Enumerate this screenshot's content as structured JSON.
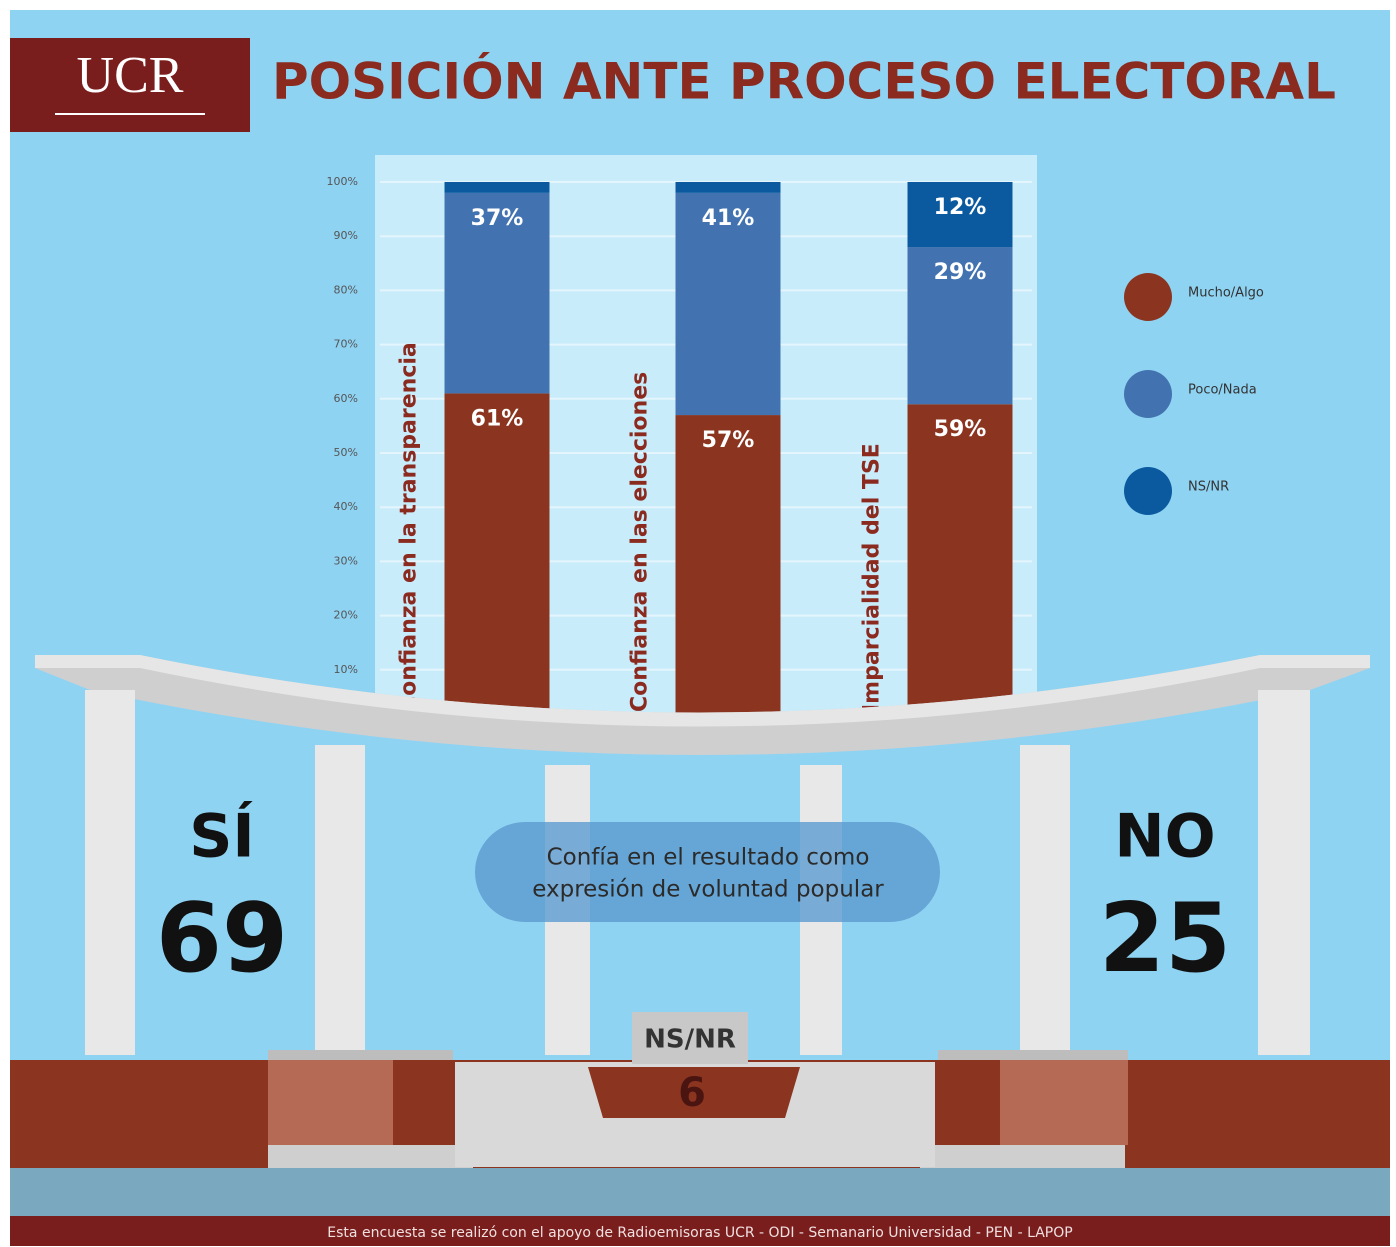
{
  "header": {
    "logo": "UCR",
    "title": "POSICIÓN ANTE PROCESO ELECTORAL"
  },
  "chart_data": {
    "type": "stacked_bar",
    "categories": [
      "Confianza en la transparencia",
      "Confianza en las elecciones",
      "Imparcialidad del TSE"
    ],
    "series": [
      {
        "name": "Mucho/Algo",
        "color": "#8b3520",
        "values": [
          61,
          57,
          59
        ],
        "value_labels": [
          "61%",
          "57%",
          "59%"
        ]
      },
      {
        "name": "Poco/Nada",
        "color": "#4273b0",
        "values": [
          37,
          41,
          29
        ],
        "value_labels": [
          "37%",
          "41%",
          "29%"
        ]
      },
      {
        "name": "NS/NR",
        "color": "#0b5aa0",
        "values": [
          2,
          2,
          12
        ],
        "value_labels": [
          null,
          null,
          "12%"
        ]
      }
    ],
    "ylim": [
      0,
      100
    ],
    "yticks": [
      {
        "value": 10,
        "label": "10%"
      },
      {
        "value": 20,
        "label": "20%"
      },
      {
        "value": 30,
        "label": "30%"
      },
      {
        "value": 40,
        "label": "40%"
      },
      {
        "value": 50,
        "label": "50%"
      },
      {
        "value": 60,
        "label": "60%"
      },
      {
        "value": 70,
        "label": "70%"
      },
      {
        "value": 80,
        "label": "80%"
      },
      {
        "value": 90,
        "label": "90%"
      },
      {
        "value": 100,
        "label": "100%"
      }
    ],
    "grid": true
  },
  "result": {
    "question": [
      "Confía en el resultado como",
      "expresión de voluntad popular"
    ],
    "yes_label": "SÍ",
    "yes_value": 69,
    "no_label": "NO",
    "no_value": 25,
    "nsnr_label": "NS/NR",
    "nsnr_value": 6
  },
  "footer": "Esta encuesta se realizó con el apoyo de Radioemisoras UCR - ODI - Semanario Universidad - PEN - LAPOP"
}
